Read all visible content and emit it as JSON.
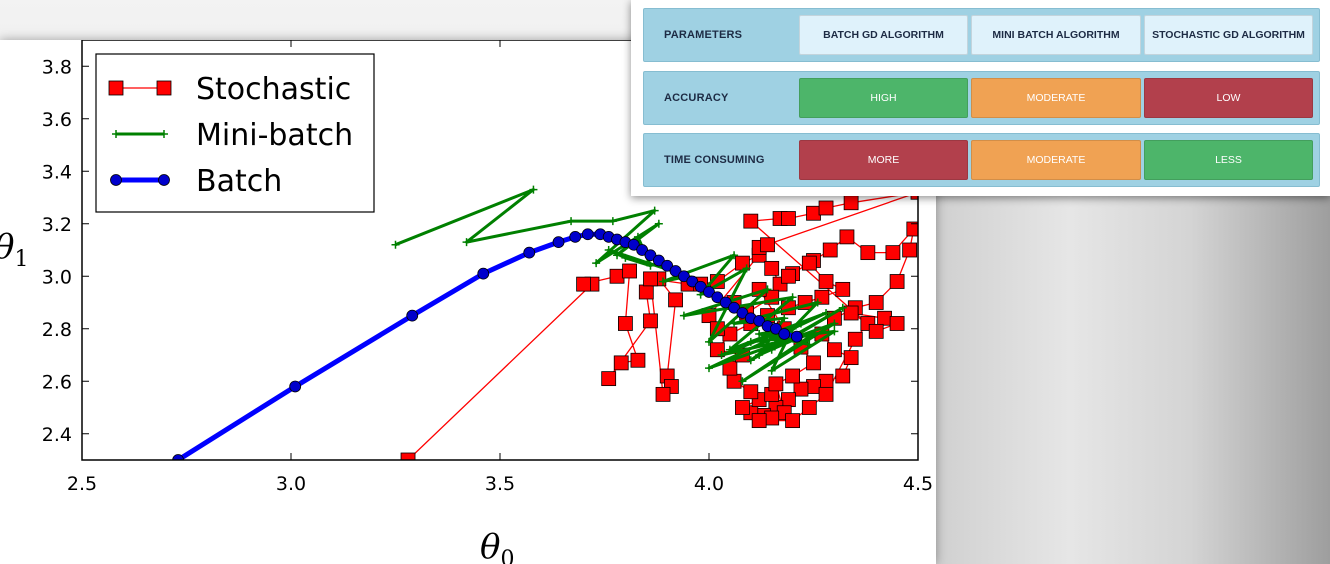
{
  "table": {
    "rows": [
      {
        "label": "PARAMETERS",
        "cells": [
          "BATCH GD ALGORITHM",
          "MINI BATCH ALGORITHM",
          "STOCHASTIC GD ALGORITHM"
        ]
      },
      {
        "label": "ACCURACY",
        "cells": [
          "HIGH",
          "MODERATE",
          "LOW"
        ]
      },
      {
        "label": "TIME CONSUMING",
        "cells": [
          "MORE",
          "MODERATE",
          "LESS"
        ]
      }
    ],
    "colors": {
      "header": "#dff2fb",
      "green": "#4db56a",
      "orange": "#f0a253",
      "red": "#b2404c",
      "row_bg": "#9fd1e3"
    }
  },
  "chart_data": {
    "type": "line",
    "xlabel": "θ0",
    "ylabel": "θ1",
    "xlim": [
      2.5,
      4.5
    ],
    "ylim": [
      2.3,
      3.9
    ],
    "xticks": [
      "2.5",
      "3.0",
      "3.5",
      "4.0",
      "4.5"
    ],
    "yticks": [
      "2.4",
      "2.6",
      "2.8",
      "3.0",
      "3.2",
      "3.4",
      "3.6",
      "3.8"
    ],
    "legend_position": "top-left",
    "series": [
      {
        "name": "Stochastic",
        "color": "#ff0000",
        "marker": "square",
        "points": [
          [
            3.28,
            2.3
          ],
          [
            3.72,
            2.97
          ],
          [
            3.7,
            2.97
          ],
          [
            3.78,
            3.0
          ],
          [
            3.81,
            3.02
          ],
          [
            3.8,
            2.82
          ],
          [
            3.83,
            2.68
          ],
          [
            3.79,
            2.67
          ],
          [
            3.76,
            2.61
          ],
          [
            3.86,
            2.83
          ],
          [
            3.85,
            2.94
          ],
          [
            3.88,
            2.99
          ],
          [
            3.92,
            2.91
          ],
          [
            3.9,
            2.62
          ],
          [
            3.91,
            2.58
          ],
          [
            3.89,
            2.55
          ],
          [
            3.86,
            2.99
          ],
          [
            3.95,
            2.97
          ],
          [
            3.98,
            2.97
          ],
          [
            4.02,
            2.98
          ],
          [
            4.08,
            3.05
          ],
          [
            4.12,
            3.08
          ],
          [
            4.15,
            3.03
          ],
          [
            4.17,
            2.97
          ],
          [
            4.2,
            3.01
          ],
          [
            4.25,
            3.06
          ],
          [
            4.29,
            3.1
          ],
          [
            4.33,
            3.15
          ],
          [
            4.38,
            3.09
          ],
          [
            4.44,
            3.09
          ],
          [
            4.49,
            3.18
          ],
          [
            4.48,
            3.1
          ],
          [
            4.45,
            2.98
          ],
          [
            4.4,
            2.9
          ],
          [
            4.35,
            2.88
          ],
          [
            4.3,
            2.84
          ],
          [
            4.27,
            2.78
          ],
          [
            4.3,
            2.72
          ],
          [
            4.34,
            2.69
          ],
          [
            4.32,
            2.62
          ],
          [
            4.28,
            2.6
          ],
          [
            4.25,
            2.58
          ],
          [
            4.22,
            2.57
          ],
          [
            4.19,
            2.53
          ],
          [
            4.16,
            2.5
          ],
          [
            4.13,
            2.47
          ],
          [
            4.1,
            2.48
          ],
          [
            4.08,
            2.5
          ],
          [
            4.12,
            2.53
          ],
          [
            4.15,
            2.55
          ],
          [
            4.1,
            2.56
          ],
          [
            4.06,
            2.6
          ],
          [
            4.05,
            2.65
          ],
          [
            4.08,
            2.7
          ],
          [
            4.02,
            2.72
          ],
          [
            4.05,
            2.78
          ],
          [
            4.1,
            2.82
          ],
          [
            4.14,
            2.85
          ],
          [
            4.19,
            2.88
          ],
          [
            4.23,
            2.9
          ],
          [
            4.27,
            2.92
          ],
          [
            4.32,
            2.95
          ],
          [
            4.28,
            2.98
          ],
          [
            4.24,
            3.05
          ],
          [
            4.19,
            3.0
          ],
          [
            4.15,
            2.92
          ],
          [
            4.09,
            2.86
          ],
          [
            4.06,
            2.9
          ],
          [
            4.12,
            2.95
          ],
          [
            4.18,
            2.8
          ],
          [
            4.22,
            2.73
          ],
          [
            4.25,
            2.67
          ],
          [
            4.2,
            2.62
          ],
          [
            4.16,
            2.59
          ],
          [
            4.18,
            2.48
          ],
          [
            4.15,
            2.46
          ],
          [
            4.12,
            2.45
          ],
          [
            4.2,
            2.45
          ],
          [
            4.24,
            2.5
          ],
          [
            4.28,
            2.55
          ],
          [
            4.35,
            2.76
          ],
          [
            4.38,
            2.82
          ],
          [
            4.34,
            2.86
          ],
          [
            4.42,
            2.84
          ],
          [
            4.45,
            2.82
          ],
          [
            4.4,
            2.79
          ],
          [
            4.1,
            3.21
          ],
          [
            4.17,
            3.22
          ],
          [
            4.19,
            3.22
          ],
          [
            4.25,
            3.24
          ],
          [
            4.28,
            3.26
          ],
          [
            4.34,
            3.28
          ],
          [
            4.5,
            3.32
          ],
          [
            4.12,
            3.11
          ],
          [
            4.14,
            3.12
          ],
          [
            4.0,
            2.85
          ],
          [
            4.02,
            2.8
          ]
        ]
      },
      {
        "name": "Mini-batch",
        "color": "#008000",
        "marker": "plus",
        "points": [
          [
            3.25,
            3.12
          ],
          [
            3.58,
            3.33
          ],
          [
            3.42,
            3.13
          ],
          [
            3.67,
            3.21
          ],
          [
            3.77,
            3.21
          ],
          [
            3.87,
            3.25
          ],
          [
            3.73,
            3.05
          ],
          [
            3.88,
            3.2
          ],
          [
            3.78,
            3.08
          ],
          [
            3.83,
            3.15
          ],
          [
            3.86,
            3.04
          ],
          [
            3.8,
            3.07
          ],
          [
            3.76,
            3.1
          ],
          [
            3.95,
            3.0
          ],
          [
            3.89,
            2.98
          ],
          [
            4.06,
            3.08
          ],
          [
            3.98,
            2.93
          ],
          [
            4.09,
            3.03
          ],
          [
            4.0,
            2.75
          ],
          [
            4.14,
            2.95
          ],
          [
            3.94,
            2.85
          ],
          [
            4.2,
            2.92
          ],
          [
            4.05,
            2.72
          ],
          [
            4.28,
            2.86
          ],
          [
            4.0,
            2.65
          ],
          [
            4.3,
            2.82
          ],
          [
            4.08,
            2.6
          ],
          [
            4.25,
            2.78
          ],
          [
            4.03,
            2.7
          ],
          [
            4.22,
            2.82
          ],
          [
            4.1,
            2.68
          ],
          [
            4.32,
            2.88
          ],
          [
            4.15,
            2.72
          ],
          [
            4.26,
            2.9
          ],
          [
            4.06,
            2.82
          ],
          [
            4.18,
            2.84
          ],
          [
            4.12,
            2.7
          ],
          [
            4.22,
            2.77
          ],
          [
            4.1,
            2.75
          ],
          [
            4.3,
            2.79
          ],
          [
            4.15,
            2.64
          ],
          [
            4.2,
            2.8
          ],
          [
            4.12,
            2.78
          ],
          [
            4.24,
            2.74
          ]
        ]
      },
      {
        "name": "Batch",
        "color": "#0000ff",
        "marker": "circle",
        "points": [
          [
            2.73,
            2.3
          ],
          [
            3.01,
            2.58
          ],
          [
            3.29,
            2.85
          ],
          [
            3.46,
            3.01
          ],
          [
            3.57,
            3.09
          ],
          [
            3.64,
            3.13
          ],
          [
            3.68,
            3.15
          ],
          [
            3.71,
            3.16
          ],
          [
            3.74,
            3.16
          ],
          [
            3.76,
            3.15
          ],
          [
            3.78,
            3.14
          ],
          [
            3.8,
            3.13
          ],
          [
            3.82,
            3.12
          ],
          [
            3.84,
            3.1
          ],
          [
            3.86,
            3.08
          ],
          [
            3.88,
            3.06
          ],
          [
            3.9,
            3.04
          ],
          [
            3.92,
            3.02
          ],
          [
            3.94,
            3.0
          ],
          [
            3.96,
            2.98
          ],
          [
            3.98,
            2.96
          ],
          [
            4.0,
            2.94
          ],
          [
            4.02,
            2.92
          ],
          [
            4.04,
            2.9
          ],
          [
            4.06,
            2.88
          ],
          [
            4.08,
            2.86
          ],
          [
            4.1,
            2.84
          ],
          [
            4.12,
            2.83
          ],
          [
            4.14,
            2.81
          ],
          [
            4.16,
            2.8
          ],
          [
            4.18,
            2.78
          ],
          [
            4.21,
            2.77
          ]
        ]
      }
    ]
  }
}
